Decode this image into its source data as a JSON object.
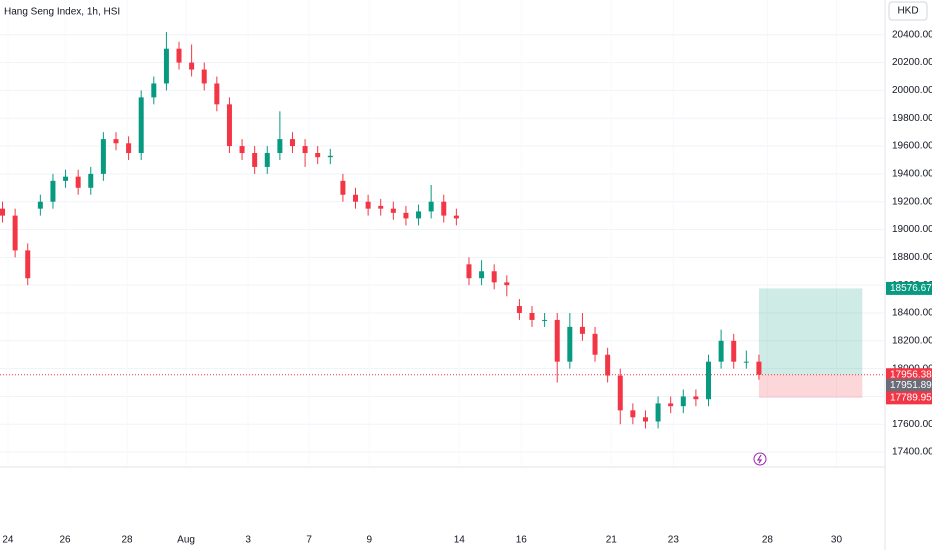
{
  "chart_data": {
    "type": "candlestick",
    "title": "Hang Seng Index, 1h, HSI",
    "currency": "HKD",
    "up_color": "#089981",
    "down_color": "#f23645",
    "grid": true,
    "open": [
      19150,
      19100,
      18850,
      19150,
      19200,
      19350,
      19380,
      19300,
      19400,
      19650,
      19620,
      19550,
      19950,
      20050,
      20300,
      20200,
      20150,
      20050,
      19900,
      19600,
      19550,
      19450,
      19550,
      19650,
      19600,
      19550,
      19520,
      19350,
      19250,
      19200,
      19170,
      19150,
      19120,
      19080,
      19130,
      19200,
      19100,
      18750,
      18650,
      18700,
      18620,
      18450,
      18400,
      18350,
      18350,
      18050,
      18300,
      18250,
      18100,
      17950,
      17700,
      17650,
      17620,
      17750,
      17730,
      17800,
      17780,
      18050,
      18200,
      18050,
      18050
    ],
    "high": [
      19200,
      19150,
      18900,
      19250,
      19400,
      19430,
      19430,
      19450,
      19700,
      19700,
      19670,
      20000,
      20100,
      20420,
      20350,
      20330,
      20200,
      20100,
      19950,
      19650,
      19600,
      19600,
      19850,
      19700,
      19650,
      19600,
      19580,
      19400,
      19300,
      19250,
      19220,
      19200,
      19170,
      19180,
      19320,
      19250,
      19150,
      18800,
      18780,
      18750,
      18670,
      18500,
      18450,
      18400,
      18400,
      18400,
      18400,
      18300,
      18150,
      18000,
      17750,
      17700,
      17800,
      17800,
      17850,
      17850,
      18100,
      18280,
      18250,
      18130,
      18100
    ],
    "low": [
      19050,
      18800,
      18600,
      19100,
      19150,
      19300,
      19250,
      19250,
      19350,
      19570,
      19500,
      19500,
      19900,
      20000,
      20150,
      20100,
      20000,
      19850,
      19550,
      19500,
      19400,
      19400,
      19500,
      19550,
      19450,
      19470,
      19470,
      19200,
      19150,
      19100,
      19100,
      19070,
      19030,
      19030,
      19080,
      19050,
      19030,
      18600,
      18600,
      18570,
      18520,
      18350,
      18300,
      18300,
      17900,
      18000,
      18200,
      18050,
      17900,
      17600,
      17600,
      17570,
      17570,
      17680,
      17680,
      17730,
      17730,
      18000,
      18000,
      18000,
      17920
    ],
    "close": [
      19100,
      18850,
      18650,
      19200,
      19350,
      19380,
      19300,
      19400,
      19650,
      19620,
      19550,
      19950,
      20050,
      20300,
      20200,
      20150,
      20050,
      19900,
      19600,
      19550,
      19450,
      19550,
      19650,
      19600,
      19550,
      19520,
      19530,
      19250,
      19200,
      19150,
      19150,
      19120,
      19080,
      19130,
      19200,
      19100,
      19080,
      18650,
      18700,
      18620,
      18600,
      18400,
      18350,
      18350,
      18050,
      18300,
      18250,
      18100,
      17950,
      17700,
      17650,
      17620,
      17750,
      17730,
      17800,
      17780,
      18050,
      18200,
      18050,
      18050,
      17956.38
    ],
    "xlim": [
      -0.2,
      70
    ],
    "xticks": [
      {
        "value": 0.43,
        "label": "24"
      },
      {
        "value": 4.96,
        "label": "26"
      },
      {
        "value": 9.88,
        "label": "28"
      },
      {
        "value": 14.56,
        "label": "Aug"
      },
      {
        "value": 19.48,
        "label": "3"
      },
      {
        "value": 24.32,
        "label": "7"
      },
      {
        "value": 29.09,
        "label": "9"
      },
      {
        "value": 36.23,
        "label": "14"
      },
      {
        "value": 41.15,
        "label": "16"
      },
      {
        "value": 48.29,
        "label": "21"
      },
      {
        "value": 53.21,
        "label": "23"
      },
      {
        "value": 60.67,
        "label": "28"
      },
      {
        "value": 66.15,
        "label": "30"
      }
    ],
    "ylim": [
      17300,
      20650
    ],
    "yticks": [
      {
        "value": 17400,
        "label": "17400.00"
      },
      {
        "value": 17600,
        "label": "17600.00"
      },
      {
        "value": 17800,
        "label": "17800.00"
      },
      {
        "value": 18000,
        "label": "18000.00"
      },
      {
        "value": 18200,
        "label": "18200.00"
      },
      {
        "value": 18400,
        "label": "18400.00"
      },
      {
        "value": 18600,
        "label": "18600.00"
      },
      {
        "value": 18800,
        "label": "18800.00"
      },
      {
        "value": 19000,
        "label": "19000.00"
      },
      {
        "value": 19200,
        "label": "19200.00"
      },
      {
        "value": 19400,
        "label": "19400.00"
      },
      {
        "value": 19600,
        "label": "19600.00"
      },
      {
        "value": 19800,
        "label": "19800.00"
      },
      {
        "value": 20000,
        "label": "20000.00"
      },
      {
        "value": 20200,
        "label": "20200.00"
      },
      {
        "value": 20400,
        "label": "20400.00"
      }
    ],
    "position": {
      "x_range": [
        60,
        68.2
      ],
      "target": 18576.67,
      "entry": 17956.38,
      "stop": 17789.95,
      "target_label": "18576.67",
      "entry_label": "17956.38",
      "stop_label": "17789.95"
    },
    "last_price": {
      "value": 17956.38,
      "label": "17956.38"
    },
    "bid_price": {
      "value": 17951.89,
      "label": "17951.89"
    }
  }
}
